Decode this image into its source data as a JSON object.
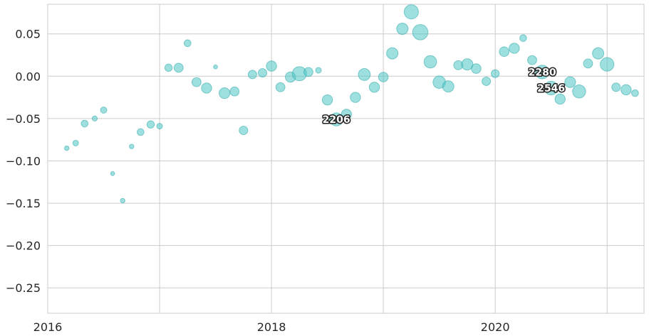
{
  "chart_data": {
    "type": "scatter",
    "title": "",
    "xlabel": "",
    "ylabel": "",
    "x_unit": "year",
    "xlim": [
      2016.0,
      2021.33
    ],
    "ylim": [
      -0.28,
      0.085
    ],
    "grid": true,
    "legend": "none",
    "x_ticks": [
      {
        "value": 2016,
        "label": "2016"
      },
      {
        "value": 2018,
        "label": "2018"
      },
      {
        "value": 2020,
        "label": "2020"
      }
    ],
    "x_gridlines": [
      2016,
      2017,
      2018,
      2019,
      2020,
      2021
    ],
    "y_ticks": [
      {
        "value": 0.05,
        "label": "0.05"
      },
      {
        "value": 0.0,
        "label": "0.00"
      },
      {
        "value": -0.05,
        "label": "−0.05"
      },
      {
        "value": -0.1,
        "label": "−0.10"
      },
      {
        "value": -0.15,
        "label": "−0.15"
      },
      {
        "value": -0.2,
        "label": "−0.20"
      },
      {
        "value": -0.25,
        "label": "−0.25"
      }
    ],
    "marker_color": "#4fc4c4",
    "marker_stroke": "#3aaeae",
    "points": [
      {
        "x": 2016.17,
        "y": -0.085,
        "size": 0.8
      },
      {
        "x": 2016.25,
        "y": -0.079,
        "size": 1.0
      },
      {
        "x": 2016.33,
        "y": -0.056,
        "size": 1.2
      },
      {
        "x": 2016.42,
        "y": -0.05,
        "size": 0.9
      },
      {
        "x": 2016.5,
        "y": -0.04,
        "size": 1.1
      },
      {
        "x": 2016.58,
        "y": -0.115,
        "size": 0.7
      },
      {
        "x": 2016.67,
        "y": -0.147,
        "size": 0.8
      },
      {
        "x": 2016.75,
        "y": -0.083,
        "size": 0.8
      },
      {
        "x": 2016.83,
        "y": -0.066,
        "size": 1.2
      },
      {
        "x": 2016.92,
        "y": -0.057,
        "size": 1.3
      },
      {
        "x": 2017.0,
        "y": -0.059,
        "size": 1.0
      },
      {
        "x": 2017.08,
        "y": 0.01,
        "size": 1.3
      },
      {
        "x": 2017.17,
        "y": 0.01,
        "size": 1.6
      },
      {
        "x": 2017.25,
        "y": 0.039,
        "size": 1.2
      },
      {
        "x": 2017.33,
        "y": -0.007,
        "size": 1.6
      },
      {
        "x": 2017.42,
        "y": -0.014,
        "size": 1.8
      },
      {
        "x": 2017.5,
        "y": 0.011,
        "size": 0.7
      },
      {
        "x": 2017.58,
        "y": -0.02,
        "size": 1.9
      },
      {
        "x": 2017.67,
        "y": -0.018,
        "size": 1.6
      },
      {
        "x": 2017.75,
        "y": -0.064,
        "size": 1.5
      },
      {
        "x": 2017.83,
        "y": 0.002,
        "size": 1.5
      },
      {
        "x": 2017.92,
        "y": 0.004,
        "size": 1.5
      },
      {
        "x": 2018.0,
        "y": 0.012,
        "size": 1.8
      },
      {
        "x": 2018.08,
        "y": -0.013,
        "size": 1.6
      },
      {
        "x": 2018.17,
        "y": -0.001,
        "size": 1.8
      },
      {
        "x": 2018.25,
        "y": 0.003,
        "size": 2.5
      },
      {
        "x": 2018.33,
        "y": 0.005,
        "size": 1.6
      },
      {
        "x": 2018.42,
        "y": 0.007,
        "size": 1.0
      },
      {
        "x": 2018.5,
        "y": -0.028,
        "size": 1.8
      },
      {
        "x": 2018.58,
        "y": -0.051,
        "size": 2.3,
        "label": "2206"
      },
      {
        "x": 2018.67,
        "y": -0.045,
        "size": 1.8
      },
      {
        "x": 2018.75,
        "y": -0.025,
        "size": 1.8
      },
      {
        "x": 2018.83,
        "y": 0.002,
        "size": 2.1
      },
      {
        "x": 2018.92,
        "y": -0.013,
        "size": 1.8
      },
      {
        "x": 2019.0,
        "y": -0.001,
        "size": 1.7
      },
      {
        "x": 2019.08,
        "y": 0.027,
        "size": 2.0
      },
      {
        "x": 2019.17,
        "y": 0.056,
        "size": 2.0
      },
      {
        "x": 2019.25,
        "y": 0.076,
        "size": 2.5
      },
      {
        "x": 2019.33,
        "y": 0.052,
        "size": 2.7
      },
      {
        "x": 2019.42,
        "y": 0.017,
        "size": 2.2
      },
      {
        "x": 2019.5,
        "y": -0.007,
        "size": 2.2
      },
      {
        "x": 2019.58,
        "y": -0.012,
        "size": 2.0
      },
      {
        "x": 2019.67,
        "y": 0.013,
        "size": 1.6
      },
      {
        "x": 2019.75,
        "y": 0.014,
        "size": 2.0
      },
      {
        "x": 2019.83,
        "y": 0.009,
        "size": 1.7
      },
      {
        "x": 2019.92,
        "y": -0.006,
        "size": 1.5
      },
      {
        "x": 2020.0,
        "y": 0.003,
        "size": 1.4
      },
      {
        "x": 2020.08,
        "y": 0.029,
        "size": 1.7
      },
      {
        "x": 2020.17,
        "y": 0.033,
        "size": 1.8
      },
      {
        "x": 2020.25,
        "y": 0.045,
        "size": 1.2
      },
      {
        "x": 2020.33,
        "y": 0.019,
        "size": 1.6
      },
      {
        "x": 2020.42,
        "y": 0.005,
        "size": 2.4,
        "label": "2280"
      },
      {
        "x": 2020.5,
        "y": -0.014,
        "size": 2.4,
        "label": "2546"
      },
      {
        "x": 2020.58,
        "y": -0.027,
        "size": 1.8
      },
      {
        "x": 2020.67,
        "y": -0.007,
        "size": 1.9
      },
      {
        "x": 2020.75,
        "y": -0.018,
        "size": 2.3
      },
      {
        "x": 2020.83,
        "y": 0.015,
        "size": 1.6
      },
      {
        "x": 2020.92,
        "y": 0.027,
        "size": 2.0
      },
      {
        "x": 2021.0,
        "y": 0.014,
        "size": 2.4
      },
      {
        "x": 2021.08,
        "y": -0.013,
        "size": 1.5
      },
      {
        "x": 2021.17,
        "y": -0.016,
        "size": 1.8
      },
      {
        "x": 2021.25,
        "y": -0.02,
        "size": 1.2
      }
    ]
  }
}
